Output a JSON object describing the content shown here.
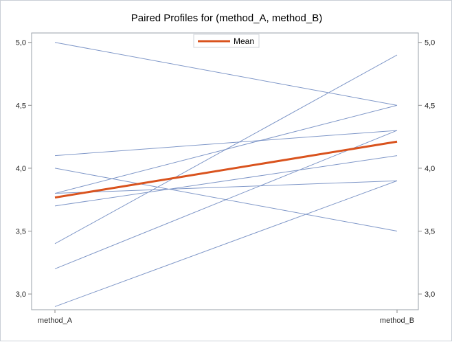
{
  "chart_data": {
    "type": "line",
    "title": "Paired Profiles for (method_A, method_B)",
    "categories": [
      "method_A",
      "method_B"
    ],
    "ylim": [
      2.875,
      5.075
    ],
    "yticks": [
      "3,0",
      "3,5",
      "4,0",
      "4,5",
      "5,0"
    ],
    "ytick_values": [
      3.0,
      3.5,
      4.0,
      4.5,
      5.0
    ],
    "profiles": [
      [
        5.0,
        4.5
      ],
      [
        4.1,
        4.3
      ],
      [
        4.0,
        3.5
      ],
      [
        3.8,
        4.5
      ],
      [
        3.8,
        3.9
      ],
      [
        3.7,
        4.1
      ],
      [
        3.4,
        4.9
      ],
      [
        3.2,
        4.3
      ],
      [
        2.9,
        3.9
      ]
    ],
    "series": [
      {
        "name": "Mean",
        "values": [
          3.767,
          4.211
        ],
        "color": "#d9531e"
      }
    ],
    "profile_color": "#7f97c8",
    "mean_color": "#d9531e",
    "legend": {
      "label": "Mean",
      "placement": "top-center"
    },
    "axis_color": "#888888"
  }
}
